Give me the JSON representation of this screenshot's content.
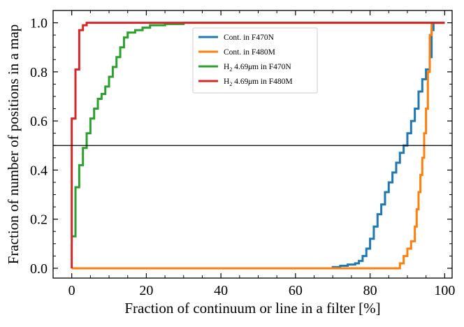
{
  "chart_data": {
    "type": "line",
    "subtype": "step-cdf",
    "title": "",
    "xlabel": "Fraction of continuum or line in a filter [%]",
    "ylabel": "Fraction of number of positions in a map",
    "xlim": [
      -5,
      102
    ],
    "ylim": [
      -0.04,
      1.05
    ],
    "x_ticks": [
      0,
      20,
      40,
      60,
      80,
      100
    ],
    "x_tick_labels": [
      "0",
      "20",
      "40",
      "60",
      "80",
      "100"
    ],
    "y_ticks": [
      0.0,
      0.2,
      0.4,
      0.6,
      0.8,
      1.0
    ],
    "y_tick_labels": [
      "0.0",
      "0.2",
      "0.4",
      "0.6",
      "0.8",
      "1.0"
    ],
    "hline": 0.5,
    "legend_position": "top-center",
    "series": [
      {
        "name": "Cont. in F470N",
        "label_main": "Cont. in F470N",
        "color": "#1f77b4",
        "points": [
          [
            0,
            0
          ],
          [
            68,
            0
          ],
          [
            70,
            0.005
          ],
          [
            72,
            0.01
          ],
          [
            74,
            0.015
          ],
          [
            76,
            0.02
          ],
          [
            77,
            0.03
          ],
          [
            78,
            0.05
          ],
          [
            79,
            0.08
          ],
          [
            80,
            0.12
          ],
          [
            81,
            0.17
          ],
          [
            82,
            0.22
          ],
          [
            83,
            0.26
          ],
          [
            84,
            0.31
          ],
          [
            85,
            0.35
          ],
          [
            86,
            0.39
          ],
          [
            87,
            0.43
          ],
          [
            88,
            0.47
          ],
          [
            89,
            0.5
          ],
          [
            90,
            0.55
          ],
          [
            91,
            0.6
          ],
          [
            92,
            0.65
          ],
          [
            93,
            0.72
          ],
          [
            94,
            0.77
          ],
          [
            95,
            0.81
          ],
          [
            96,
            0.86
          ],
          [
            96.5,
            0.97
          ],
          [
            97,
            1.0
          ],
          [
            100,
            1.0
          ]
        ]
      },
      {
        "name": "Cont. in F480M",
        "label_main": "Cont. in F480M",
        "color": "#ff7f0e",
        "points": [
          [
            0,
            0
          ],
          [
            87,
            0
          ],
          [
            88,
            0.02
          ],
          [
            89,
            0.05
          ],
          [
            90,
            0.08
          ],
          [
            91,
            0.11
          ],
          [
            92,
            0.17
          ],
          [
            92.5,
            0.24
          ],
          [
            93,
            0.31
          ],
          [
            93.5,
            0.38
          ],
          [
            94,
            0.45
          ],
          [
            94.5,
            0.55
          ],
          [
            95,
            0.65
          ],
          [
            95.5,
            0.8
          ],
          [
            96,
            0.95
          ],
          [
            96.5,
            1.0
          ],
          [
            100,
            1.0
          ]
        ]
      },
      {
        "name": "H2 4.69um in F470N",
        "label_main": "H",
        "label_sub": "2",
        "label_rest": " 4.69",
        "label_mu": "μ",
        "label_end": "m in F470N",
        "color": "#2ca02c",
        "points": [
          [
            0,
            0.13
          ],
          [
            1,
            0.33
          ],
          [
            2,
            0.42
          ],
          [
            3,
            0.49
          ],
          [
            4,
            0.55
          ],
          [
            5,
            0.61
          ],
          [
            6,
            0.65
          ],
          [
            7,
            0.69
          ],
          [
            8,
            0.71
          ],
          [
            9,
            0.74
          ],
          [
            10,
            0.78
          ],
          [
            11,
            0.82
          ],
          [
            12,
            0.86
          ],
          [
            13,
            0.9
          ],
          [
            14,
            0.94
          ],
          [
            15,
            0.96
          ],
          [
            17,
            0.97
          ],
          [
            19,
            0.98
          ],
          [
            21,
            0.99
          ],
          [
            25,
            0.995
          ],
          [
            30,
            1.0
          ],
          [
            100,
            1.0
          ]
        ]
      },
      {
        "name": "H2 4.69um in F480M",
        "label_main": "H",
        "label_sub": "2",
        "label_rest": " 4.69",
        "label_mu": "μ",
        "label_end": "m in F480M",
        "color": "#d62728",
        "points": [
          [
            0,
            0
          ],
          [
            0,
            0.61
          ],
          [
            1,
            0.81
          ],
          [
            2,
            0.97
          ],
          [
            3,
            0.99
          ],
          [
            4,
            1.0
          ],
          [
            100,
            1.0
          ]
        ]
      }
    ]
  }
}
